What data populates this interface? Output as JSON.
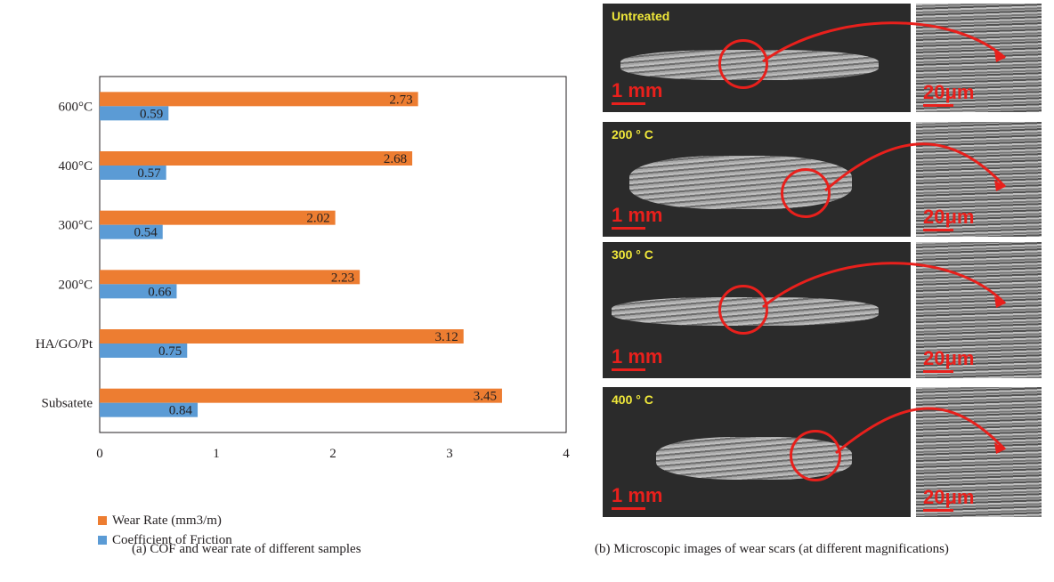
{
  "chart_data": {
    "type": "bar",
    "orientation": "horizontal",
    "categories": [
      "Subsatete",
      "HA/GO/Pt",
      "200°C",
      "300°C",
      "400°C",
      "600°C"
    ],
    "series": [
      {
        "name": "Wear Rate (mm3/m)",
        "values": [
          3.45,
          3.12,
          2.23,
          2.02,
          2.68,
          2.73
        ],
        "labels": [
          "3.45",
          "3.12",
          "2.23",
          "2.02",
          "2.68",
          "2.73"
        ],
        "color": "#ed7d31"
      },
      {
        "name": "Coefficient of Friction",
        "values": [
          0.84,
          0.75,
          0.66,
          0.54,
          0.57,
          0.59
        ],
        "labels": [
          "0.84",
          "0.75",
          "0.66",
          "0.54",
          "0.57",
          "0.59"
        ],
        "color": "#5b9bd5"
      }
    ],
    "xlim": [
      0,
      4
    ],
    "xticks": [
      "0",
      "1",
      "2",
      "3",
      "4"
    ],
    "grid": false,
    "legend": "bottom"
  },
  "captions": {
    "a": "(a)  COF and wear rate of different samples",
    "b": "(b)  Microscopic images of wear scars (at different magnifications)"
  },
  "micrographs": [
    {
      "label": "Untreated",
      "scale_low": "1 mm",
      "scale_high": "20μm"
    },
    {
      "label": "200 ° C",
      "scale_low": "1 mm",
      "scale_high": "20μm"
    },
    {
      "label": "300 ° C",
      "scale_low": "1 mm",
      "scale_high": "20μm"
    },
    {
      "label": "400 ° C",
      "scale_low": "1 mm",
      "scale_high": "20μm"
    }
  ]
}
